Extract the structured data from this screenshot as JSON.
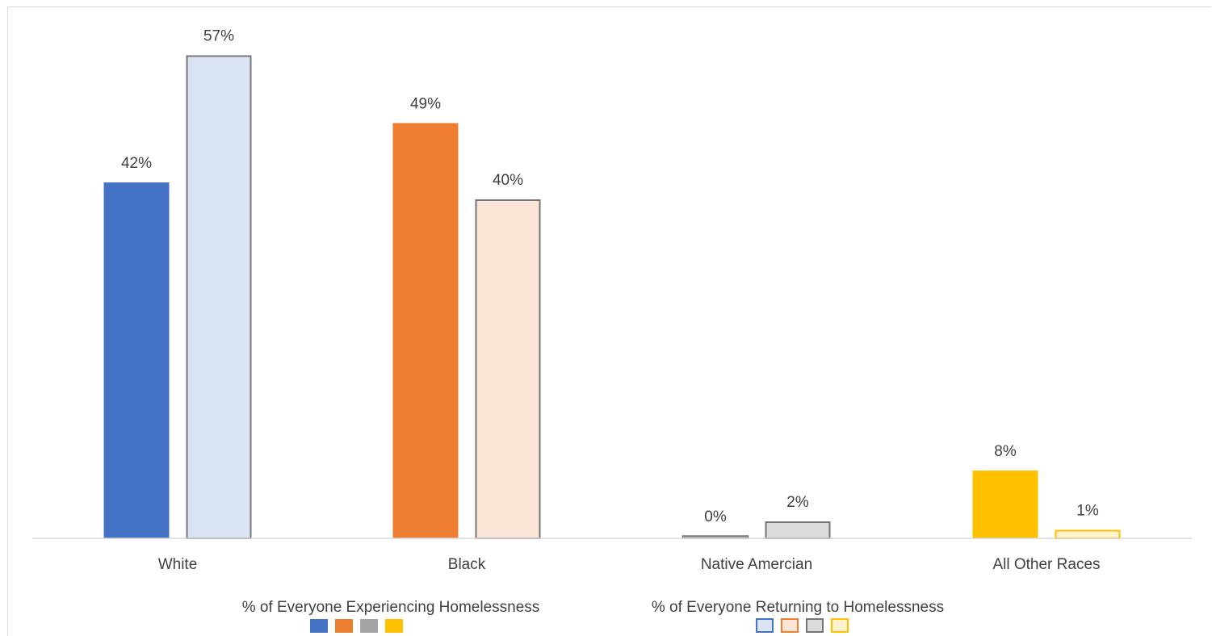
{
  "chart_data": {
    "type": "bar",
    "categories": [
      "White",
      "Black",
      "Native Amercian",
      "All Other Races"
    ],
    "series": [
      {
        "name": "% of Everyone Experiencing Homelessness",
        "values": [
          42,
          49,
          0,
          8
        ],
        "labels": [
          "42%",
          "49%",
          "0%",
          "8%"
        ],
        "colors": [
          "#4472c4",
          "#ed7d31",
          "#a5a5a5",
          "#ffc000"
        ],
        "style": "solid"
      },
      {
        "name": "% of Everyone Returning to Homelessness",
        "values": [
          57,
          40,
          2,
          1
        ],
        "labels": [
          "57%",
          "40%",
          "2%",
          "1%"
        ],
        "fills": [
          "#dae3f3",
          "#fbe5d6",
          "#dbdbdb",
          "#fff2cc"
        ],
        "borders": [
          "#757575",
          "#757575",
          "#757575",
          "#ffc000"
        ],
        "style": "outlined"
      }
    ],
    "ylim": [
      0,
      60
    ],
    "grid": false,
    "legend_position": "bottom"
  }
}
